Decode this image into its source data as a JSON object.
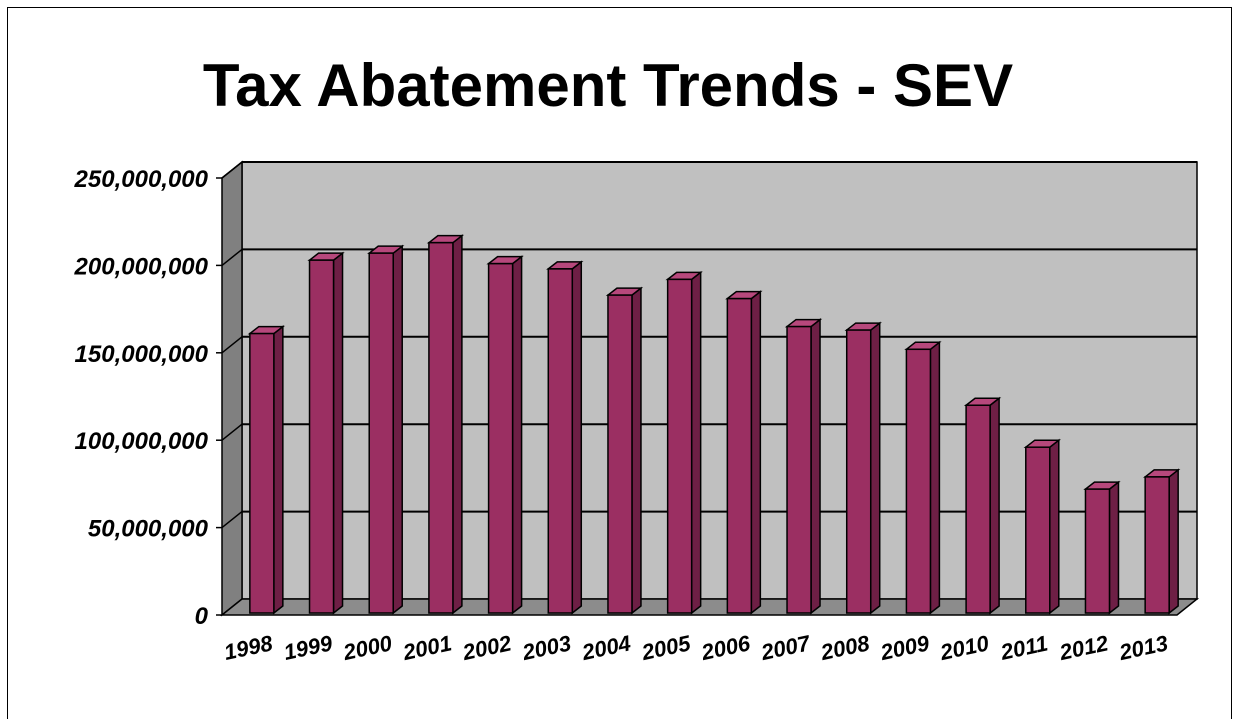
{
  "chart_data": {
    "type": "bar",
    "title": "Tax Abatement Trends - SEV",
    "xlabel": "",
    "ylabel": "",
    "ylim": [
      0,
      250000000
    ],
    "yticks": [
      0,
      50000000,
      100000000,
      150000000,
      200000000,
      250000000
    ],
    "ytick_labels": [
      "0",
      "50,000,000",
      "100,000,000",
      "150,000,000",
      "200,000,000",
      "250,000,000"
    ],
    "categories": [
      "1998",
      "1999",
      "2000",
      "2001",
      "2002",
      "2003",
      "2004",
      "2005",
      "2006",
      "2007",
      "2008",
      "2009",
      "2010",
      "2011",
      "2012",
      "2013"
    ],
    "values": [
      161000000,
      203000000,
      207000000,
      213000000,
      201000000,
      198000000,
      183000000,
      192000000,
      181000000,
      165000000,
      163000000,
      152000000,
      120000000,
      96000000,
      72000000,
      79000000
    ],
    "grid": true,
    "legend": "none",
    "colors": {
      "bar": "#9b2f62",
      "bar_top": "#b7487c",
      "bar_side": "#6e1f45",
      "wall": "#c0c0c0",
      "wall_left": "#808080",
      "floor": "#8c8c8c"
    }
  }
}
